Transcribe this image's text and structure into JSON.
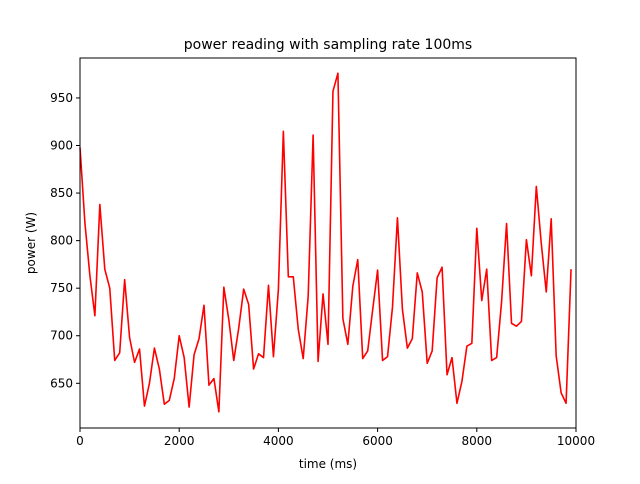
{
  "chart_data": {
    "type": "line",
    "title": "power reading with sampling rate 100ms",
    "xlabel": "time (ms)",
    "ylabel": "power (W)",
    "xlim": [
      0,
      10000
    ],
    "ylim": [
      603,
      992
    ],
    "xticks": [
      0,
      2000,
      4000,
      6000,
      8000,
      10000
    ],
    "yticks": [
      650,
      700,
      750,
      800,
      850,
      900,
      950
    ],
    "grid": false,
    "series": [
      {
        "color": "#ff0000",
        "x": [
          0,
          100,
          200,
          300,
          400,
          500,
          600,
          700,
          800,
          900,
          1000,
          1100,
          1200,
          1300,
          1400,
          1500,
          1600,
          1700,
          1800,
          1900,
          2000,
          2100,
          2200,
          2300,
          2400,
          2500,
          2600,
          2700,
          2800,
          2900,
          3000,
          3100,
          3200,
          3300,
          3400,
          3500,
          3600,
          3700,
          3800,
          3900,
          4000,
          4100,
          4200,
          4300,
          4400,
          4500,
          4600,
          4700,
          4800,
          4900,
          5000,
          5100,
          5200,
          5300,
          5400,
          5500,
          5600,
          5700,
          5800,
          5900,
          6000,
          6100,
          6200,
          6300,
          6400,
          6500,
          6600,
          6700,
          6800,
          6900,
          7000,
          7100,
          7200,
          7300,
          7400,
          7500,
          7600,
          7700,
          7800,
          7900,
          8000,
          8100,
          8200,
          8300,
          8400,
          8500,
          8600,
          8700,
          8800,
          8900,
          9000,
          9100,
          9200,
          9300,
          9400,
          9500,
          9600,
          9700,
          9800,
          9900
        ],
        "values": [
          898,
          818,
          763,
          721,
          838,
          770,
          750,
          674,
          682,
          759,
          698,
          672,
          686,
          626,
          650,
          687,
          665,
          628,
          632,
          655,
          700,
          677,
          625,
          680,
          697,
          732,
          648,
          655,
          620,
          751,
          717,
          674,
          708,
          749,
          733,
          665,
          681,
          677,
          753,
          678,
          749,
          915,
          762,
          762,
          707,
          676,
          741,
          911,
          673,
          744,
          691,
          957,
          976,
          718,
          691,
          752,
          780,
          676,
          684,
          727,
          769,
          674,
          678,
          730,
          824,
          728,
          687,
          697,
          766,
          746,
          671,
          684,
          761,
          772,
          659,
          677,
          629,
          652,
          689,
          692,
          813,
          737,
          770,
          674,
          677,
          736,
          818,
          713,
          710,
          715,
          801,
          763,
          857,
          797,
          746,
          823,
          679,
          640,
          629,
          770
        ]
      }
    ]
  }
}
